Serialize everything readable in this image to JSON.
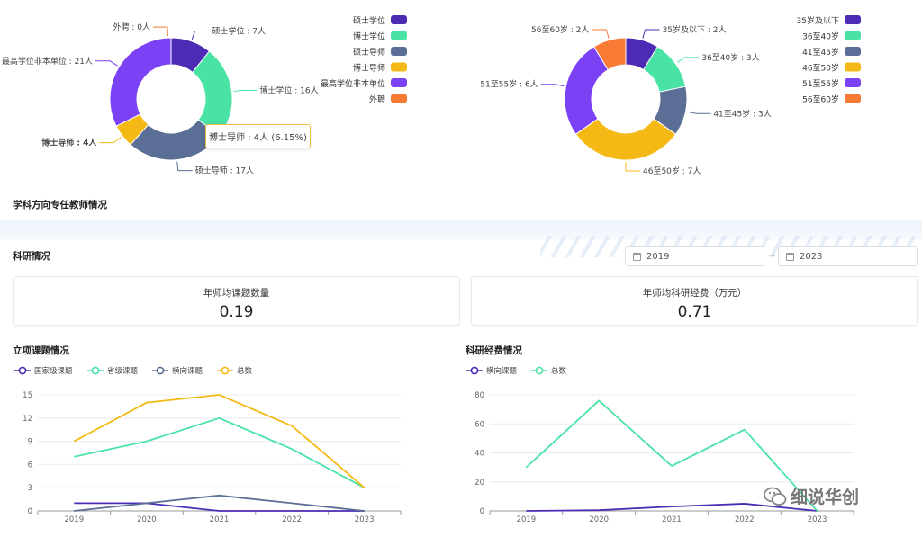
{
  "section_teachers": "学科方向专任教师情况",
  "section_research": "科研情况",
  "date_range": {
    "from": "2019",
    "to": "2023",
    "separator": "~"
  },
  "stats": [
    {
      "label": "年师均课题数量",
      "value": "0.19"
    },
    {
      "label": "年师均科研经费（万元）",
      "value": "0.71"
    }
  ],
  "tooltip": "博士导师 : 4人 (6.15%)",
  "watermark": "细说华创",
  "chart_data": [
    {
      "type": "pie",
      "variant": "donut",
      "slices": [
        {
          "name": "硕士学位",
          "label": "硕士学位 : 7人",
          "value": 7,
          "color": "#4c2bb5"
        },
        {
          "name": "博士学位",
          "label": "博士学位 : 16人",
          "value": 16,
          "color": "#48e3a5"
        },
        {
          "name": "硕士导师",
          "label": "硕士导师 : 17人",
          "value": 17,
          "color": "#5b6e95"
        },
        {
          "name": "博士导师",
          "label": "博士导师 : 4人",
          "value": 4,
          "color": "#f5b915"
        },
        {
          "name": "最高学位非本单位",
          "label": "最高学位非本单位 : 21人",
          "value": 21,
          "color": "#7a41f5"
        },
        {
          "name": "外聘",
          "label": "外聘 : 0人",
          "value": 0,
          "color": "#f77a35"
        }
      ],
      "legend": "right"
    },
    {
      "type": "pie",
      "variant": "donut",
      "slices": [
        {
          "name": "35岁及以下",
          "label": "35岁及以下 : 2人",
          "value": 2,
          "color": "#4c2bb5"
        },
        {
          "name": "36至40岁",
          "label": "36至40岁 : 3人",
          "value": 3,
          "color": "#48e3a5"
        },
        {
          "name": "41至45岁",
          "label": "41至45岁 : 3人",
          "value": 3,
          "color": "#5b6e95"
        },
        {
          "name": "46至50岁",
          "label": "46至50岁 : 7人",
          "value": 7,
          "color": "#f5b915"
        },
        {
          "name": "51至55岁",
          "label": "51至55岁 : 6人",
          "value": 6,
          "color": "#7a41f5"
        },
        {
          "name": "56至60岁",
          "label": "56至60岁 : 2人",
          "value": 2,
          "color": "#f77a35"
        }
      ],
      "legend": "right"
    },
    {
      "type": "line",
      "title": "立项课题情况",
      "x": [
        "2019",
        "2020",
        "2021",
        "2022",
        "2023"
      ],
      "ylim": [
        0,
        15
      ],
      "yticks": [
        0,
        3,
        6,
        9,
        12,
        15
      ],
      "grid": true,
      "legend": "top-left",
      "series": [
        {
          "name": "国家级课题",
          "values": [
            1,
            1,
            0,
            0,
            0
          ],
          "color": "#4c2bb5"
        },
        {
          "name": "省级课题",
          "values": [
            7,
            9,
            12,
            8,
            3
          ],
          "color": "#48e3a5"
        },
        {
          "name": "横向课题",
          "values": [
            0,
            1,
            2,
            1,
            0
          ],
          "color": "#5b6e95"
        },
        {
          "name": "总数",
          "values": [
            9,
            14,
            15,
            11,
            3
          ],
          "color": "#f5b915"
        }
      ]
    },
    {
      "type": "line",
      "title": "科研经费情况",
      "x": [
        "2019",
        "2020",
        "2021",
        "2022",
        "2023"
      ],
      "ylim": [
        0,
        80
      ],
      "yticks": [
        0,
        20,
        40,
        60,
        80
      ],
      "grid": true,
      "legend": "top-left",
      "series": [
        {
          "name": "横向课题",
          "values": [
            0,
            0.5,
            3,
            5,
            0
          ],
          "color": "#4c2bb5"
        },
        {
          "name": "总数",
          "values": [
            30,
            76,
            31,
            56,
            0
          ],
          "color": "#48e3a5"
        }
      ]
    }
  ]
}
